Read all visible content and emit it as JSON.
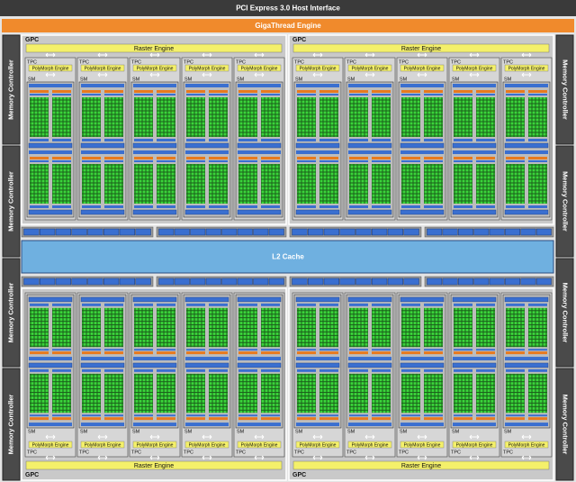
{
  "header": {
    "pcie": "PCI Express 3.0 Host Interface",
    "gigathread": "GigaThread Engine"
  },
  "memory_controllers": [
    "Memory Controller",
    "Memory Controller",
    "Memory Controller",
    "Memory Controller",
    "Memory Controller",
    "Memory Controller",
    "Memory Controller",
    "Memory Controller"
  ],
  "l2_cache": "L2 Cache",
  "gpcs": [
    {
      "label": "GPC",
      "raster_engine": "Raster Engine",
      "tpcs": [
        {
          "label": "TPC",
          "polymorph_engine": "PolyMorph Engine",
          "sm": "SM"
        },
        {
          "label": "TPC",
          "polymorph_engine": "PolyMorph Engine",
          "sm": "SM"
        },
        {
          "label": "TPC",
          "polymorph_engine": "PolyMorph Engine",
          "sm": "SM"
        },
        {
          "label": "TPC",
          "polymorph_engine": "PolyMorph Engine",
          "sm": "SM"
        },
        {
          "label": "TPC",
          "polymorph_engine": "PolyMorph Engine",
          "sm": "SM"
        }
      ]
    },
    {
      "label": "GPC",
      "raster_engine": "Raster Engine",
      "tpcs": [
        {
          "label": "TPC",
          "polymorph_engine": "PolyMorph Engine",
          "sm": "SM"
        },
        {
          "label": "TPC",
          "polymorph_engine": "PolyMorph Engine",
          "sm": "SM"
        },
        {
          "label": "TPC",
          "polymorph_engine": "PolyMorph Engine",
          "sm": "SM"
        },
        {
          "label": "TPC",
          "polymorph_engine": "PolyMorph Engine",
          "sm": "SM"
        },
        {
          "label": "TPC",
          "polymorph_engine": "PolyMorph Engine",
          "sm": "SM"
        }
      ]
    },
    {
      "label": "GPC",
      "raster_engine": "Raster Engine",
      "tpcs": [
        {
          "label": "TPC",
          "polymorph_engine": "PolyMorph Engine",
          "sm": "SM"
        },
        {
          "label": "TPC",
          "polymorph_engine": "PolyMorph Engine",
          "sm": "SM"
        },
        {
          "label": "TPC",
          "polymorph_engine": "PolyMorph Engine",
          "sm": "SM"
        },
        {
          "label": "TPC",
          "polymorph_engine": "PolyMorph Engine",
          "sm": "SM"
        },
        {
          "label": "TPC",
          "polymorph_engine": "PolyMorph Engine",
          "sm": "SM"
        }
      ]
    },
    {
      "label": "GPC",
      "raster_engine": "Raster Engine",
      "tpcs": [
        {
          "label": "TPC",
          "polymorph_engine": "PolyMorph Engine",
          "sm": "SM"
        },
        {
          "label": "TPC",
          "polymorph_engine": "PolyMorph Engine",
          "sm": "SM"
        },
        {
          "label": "TPC",
          "polymorph_engine": "PolyMorph Engine",
          "sm": "SM"
        },
        {
          "label": "TPC",
          "polymorph_engine": "PolyMorph Engine",
          "sm": "SM"
        },
        {
          "label": "TPC",
          "polymorph_engine": "PolyMorph Engine",
          "sm": "SM"
        }
      ]
    }
  ]
}
